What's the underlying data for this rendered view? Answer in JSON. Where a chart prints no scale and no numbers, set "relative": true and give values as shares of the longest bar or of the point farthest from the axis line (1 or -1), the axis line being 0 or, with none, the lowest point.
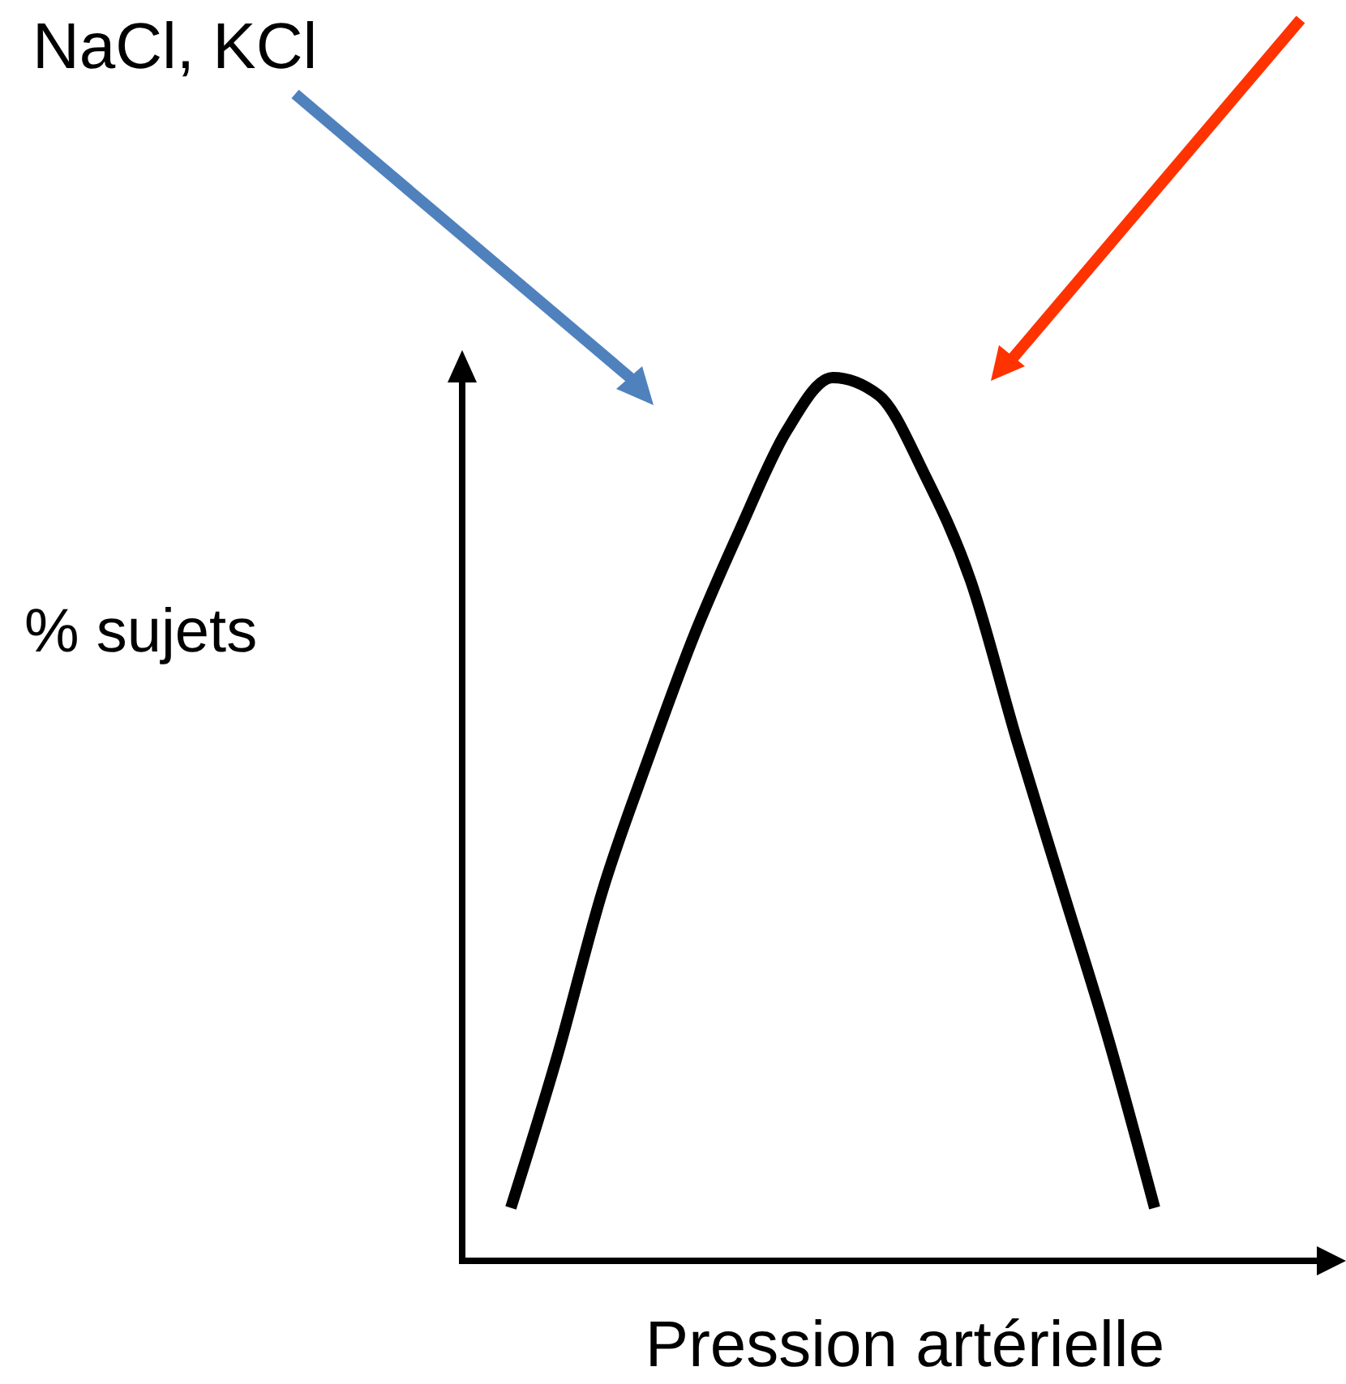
{
  "chart_data": {
    "type": "line",
    "relative": true,
    "xlabel": "Pression artérielle",
    "ylabel": "% sujets",
    "annotations": [
      "NaCl, KCl"
    ],
    "categories": [
      null,
      null,
      null,
      null,
      null,
      null,
      null,
      null,
      null,
      null,
      null,
      null,
      null,
      null,
      null
    ],
    "series": [
      {
        "color": "#000000",
        "values": [
          0.06,
          0.23,
          0.42,
          0.57,
          0.71,
          0.83,
          0.94,
          1,
          0.98,
          0.89,
          0.77,
          0.59,
          0.42,
          0.25,
          0.06
        ]
      }
    ],
    "marker": "none",
    "line_style": "solid",
    "grid": false,
    "legend": false
  }
}
